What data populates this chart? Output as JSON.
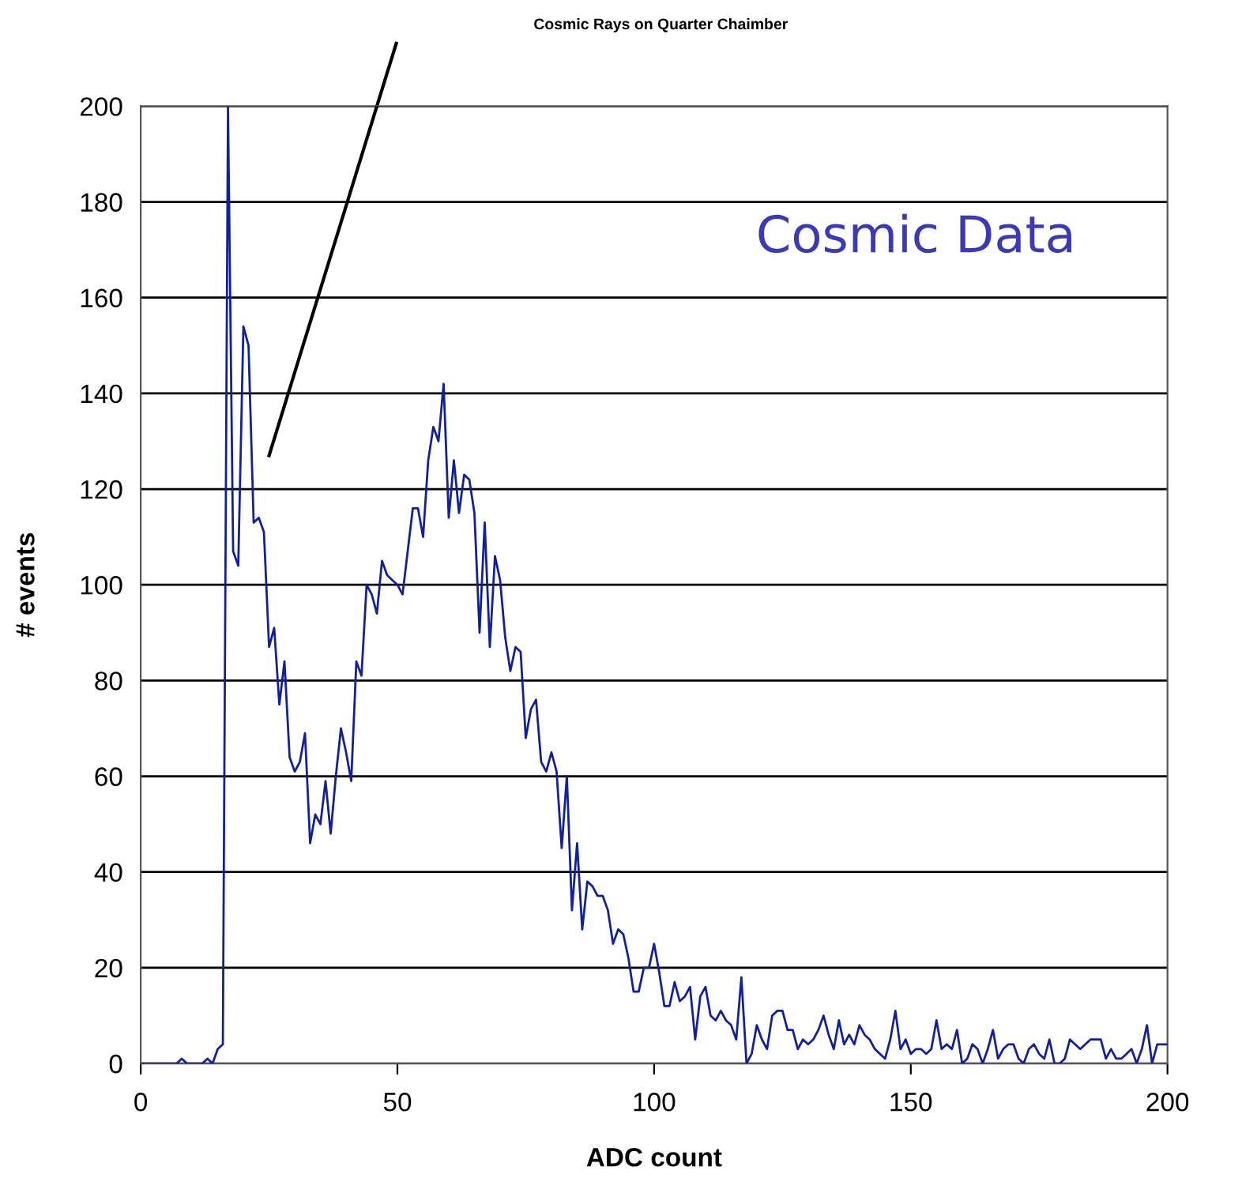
{
  "chart_data": {
    "type": "line",
    "title": "Cosmic Rays on Quarter Chaimber",
    "xlabel": "ADC count",
    "ylabel": "# events",
    "annotations": [
      "Cosmic Data"
    ],
    "xlim": [
      0,
      200
    ],
    "xticks": [
      0,
      50,
      100,
      150,
      200
    ],
    "ylim": [
      0,
      200
    ],
    "yticks": [
      0,
      20,
      40,
      60,
      80,
      100,
      120,
      140,
      160,
      180,
      200
    ],
    "grid": "y",
    "legend": false,
    "marker": "none",
    "line_style": "solid",
    "series": [
      {
        "type": "line",
        "color": "#000000",
        "x": [
          25,
          46
        ],
        "values": [
          127,
          200
        ]
      },
      {
        "color": "#1020a0",
        "x": [
          0,
          1,
          2,
          3,
          4,
          5,
          6,
          7,
          8,
          9,
          10,
          11,
          12,
          13,
          14,
          15,
          16,
          17,
          18,
          19,
          20,
          21,
          22,
          23,
          24,
          25,
          26,
          27,
          28,
          29,
          30,
          31,
          32,
          33,
          34,
          35,
          36,
          37,
          38,
          39,
          40,
          41,
          42,
          43,
          44,
          45,
          46,
          47,
          48,
          49,
          50,
          51,
          52,
          53,
          54,
          55,
          56,
          57,
          58,
          59,
          60,
          61,
          62,
          63,
          64,
          65,
          66,
          67,
          68,
          69,
          70,
          71,
          72,
          73,
          74,
          75,
          76,
          77,
          78,
          79,
          80,
          81,
          82,
          83,
          84,
          85,
          86,
          87,
          88,
          89,
          90,
          91,
          92,
          93,
          94,
          95,
          96,
          97,
          98,
          99,
          100,
          101,
          102,
          103,
          104,
          105,
          106,
          107,
          108,
          109,
          110,
          111,
          112,
          113,
          114,
          115,
          116,
          117,
          118,
          119,
          120,
          121,
          122,
          123,
          124,
          125,
          126,
          127,
          128,
          129,
          130,
          131,
          132,
          133,
          134,
          135,
          136,
          137,
          138,
          139,
          140,
          141,
          142,
          143,
          144,
          145,
          146,
          147,
          148,
          149,
          150,
          151,
          152,
          153,
          154,
          155,
          156,
          157,
          158,
          159,
          160,
          161,
          162,
          163,
          164,
          165,
          166,
          167,
          168,
          169,
          170,
          171,
          172,
          173,
          174,
          175,
          176,
          177,
          178,
          179,
          180,
          181,
          182,
          183,
          184,
          185,
          186,
          187,
          188,
          189,
          190,
          191,
          192,
          193,
          194,
          195,
          196,
          197,
          198,
          199,
          200
        ],
        "values": [
          0,
          0,
          0,
          0,
          0,
          0,
          0,
          0,
          1,
          0,
          0,
          0,
          0,
          1,
          0,
          3,
          4,
          200,
          107,
          104,
          154,
          150,
          113,
          114,
          111,
          87,
          91,
          75,
          84,
          64,
          61,
          63,
          69,
          46,
          52,
          50,
          59,
          48,
          60,
          70,
          65,
          59,
          84,
          81,
          100,
          98,
          94,
          105,
          102,
          101,
          100,
          98,
          107,
          116,
          116,
          110,
          126,
          133,
          130,
          142,
          114,
          126,
          115,
          123,
          122,
          115,
          90,
          113,
          87,
          106,
          101,
          89,
          82,
          87,
          86,
          68,
          74,
          76,
          63,
          61,
          65,
          61,
          45,
          60,
          32,
          46,
          28,
          38,
          37,
          35,
          35,
          32,
          25,
          28,
          27,
          22,
          15,
          15,
          20,
          20,
          25,
          19,
          12,
          12,
          17,
          13,
          14,
          16,
          5,
          14,
          16,
          10,
          9,
          11,
          9,
          8,
          5,
          18,
          0,
          2,
          8,
          5,
          3,
          10,
          11,
          11,
          7,
          7,
          3,
          5,
          4,
          5,
          7,
          10,
          6,
          3,
          9,
          4,
          6,
          4,
          8,
          6,
          5,
          3,
          2,
          1,
          5,
          11,
          3,
          5,
          2,
          3,
          3,
          2,
          3,
          9,
          3,
          4,
          3,
          7,
          0,
          1,
          4,
          3,
          0,
          3,
          7,
          1,
          3,
          4,
          4,
          1,
          0,
          3,
          4,
          2,
          1,
          5,
          0,
          0,
          1,
          5,
          4,
          3,
          4,
          5,
          5,
          5,
          1,
          3,
          1,
          1,
          2,
          3,
          0,
          3,
          8,
          0,
          4,
          4,
          4
        ]
      }
    ]
  }
}
